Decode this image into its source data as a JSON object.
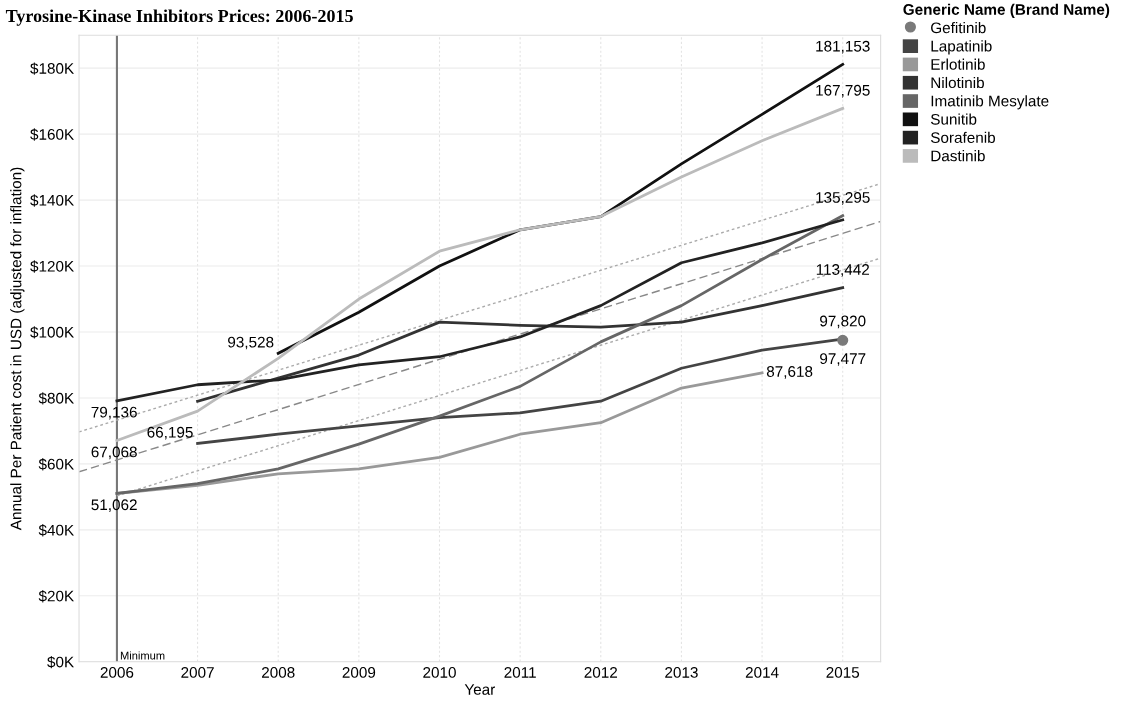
{
  "chart_data": {
    "type": "line",
    "title": "Tyrosine-Kinase Inhibitors Prices: 2006-2015",
    "xlabel": "Year",
    "ylabel": "Annual Per Patient cost in USD (adjusted for inflation)",
    "legend_title": "Generic Name (Brand Name)",
    "legend": "top right",
    "grid": true,
    "xlim": [
      2005.53,
      2015.47
    ],
    "xticks": [
      2006,
      2007,
      2008,
      2009,
      2010,
      2011,
      2012,
      2013,
      2014,
      2015
    ],
    "ylim": [
      0,
      190000
    ],
    "yticks": [
      {
        "value": 0,
        "label": "$0K"
      },
      {
        "value": 20000,
        "label": "$20K"
      },
      {
        "value": 40000,
        "label": "$40K"
      },
      {
        "value": 60000,
        "label": "$60K"
      },
      {
        "value": 80000,
        "label": "$80K"
      },
      {
        "value": 100000,
        "label": "$100K"
      },
      {
        "value": 120000,
        "label": "$120K"
      },
      {
        "value": 140000,
        "label": "$140K"
      },
      {
        "value": 160000,
        "label": "$160K"
      },
      {
        "value": 180000,
        "label": "$180K"
      }
    ],
    "series": [
      {
        "name": "Gefitinib",
        "color": "#7a7a7a",
        "x": [
          2015
        ],
        "values": [
          97477
        ],
        "marker": "circle"
      },
      {
        "name": "Lapatinib",
        "color": "#444444",
        "x": [
          2007,
          2008,
          2009,
          2010,
          2011,
          2012,
          2013,
          2014,
          2015
        ],
        "values": [
          66195,
          69000,
          71500,
          74000,
          75500,
          79000,
          89000,
          94500,
          97820
        ]
      },
      {
        "name": "Erlotinib",
        "color": "#999999",
        "x": [
          2006,
          2007,
          2008,
          2009,
          2010,
          2011,
          2012,
          2013,
          2014
        ],
        "values": [
          51062,
          53500,
          57000,
          58500,
          62000,
          69000,
          72500,
          83000,
          87618
        ]
      },
      {
        "name": "Nilotinib",
        "color": "#333333",
        "x": [
          2007,
          2008,
          2009,
          2010,
          2011,
          2012,
          2013,
          2014,
          2015
        ],
        "values": [
          79000,
          86000,
          93000,
          103000,
          102000,
          101500,
          103000,
          108000,
          113442
        ]
      },
      {
        "name": "Imatinib Mesylate",
        "color": "#666666",
        "x": [
          2006,
          2007,
          2008,
          2009,
          2010,
          2011,
          2012,
          2013,
          2014,
          2015
        ],
        "values": [
          51062,
          54000,
          58500,
          66000,
          74500,
          83500,
          97000,
          108000,
          122000,
          135295
        ]
      },
      {
        "name": "Sunitib",
        "color": "#111111",
        "x": [
          2008,
          2009,
          2010,
          2011,
          2012,
          2013,
          2014,
          2015
        ],
        "values": [
          93528,
          106000,
          120000,
          131000,
          135000,
          151000,
          166000,
          181153
        ]
      },
      {
        "name": "Sorafenib",
        "color": "#222222",
        "x": [
          2006,
          2007,
          2008,
          2009,
          2010,
          2011,
          2012,
          2013,
          2014,
          2015
        ],
        "values": [
          79136,
          84000,
          85500,
          90000,
          92500,
          98500,
          108000,
          121000,
          127000,
          134000
        ]
      },
      {
        "name": "Dastinib",
        "color": "#bbbbbb",
        "x": [
          2006,
          2007,
          2008,
          2009,
          2010,
          2011,
          2012,
          2013,
          2014,
          2015
        ],
        "values": [
          67068,
          76000,
          92000,
          110000,
          124500,
          131000,
          135000,
          147000,
          158000,
          167795
        ]
      },
      {
        "color": "#aaaaaa",
        "x": [
          2005.53,
          2015.47
        ],
        "values": [
          69700,
          145000
        ],
        "line_style": "dotted"
      },
      {
        "color": "#888888",
        "x": [
          2005.53,
          2015.47
        ],
        "values": [
          57600,
          133500
        ],
        "line_style": "dashed"
      },
      {
        "color": "#aaaaaa",
        "x": [
          2006,
          2015.47
        ],
        "values": [
          50300,
          122400
        ],
        "line_style": "dotted"
      }
    ],
    "ref_lines": [
      {
        "axis": "x",
        "value": 2006,
        "label": "Minimum",
        "color": "#777777"
      }
    ],
    "annotations": [
      {
        "text": "181,153",
        "x": 2015,
        "y": 181153
      },
      {
        "text": "167,795",
        "x": 2015,
        "y": 167795
      },
      {
        "text": "135,295",
        "x": 2015,
        "y": 135295
      },
      {
        "text": "113,442",
        "x": 2015,
        "y": 113442
      },
      {
        "text": "97,820",
        "x": 2015,
        "y": 97820
      },
      {
        "text": "97,477",
        "x": 2015,
        "y": 97477
      },
      {
        "text": "87,618",
        "x": 2014,
        "y": 87618
      },
      {
        "text": "93,528",
        "x": 2008,
        "y": 93528
      },
      {
        "text": "79,136",
        "x": 2006,
        "y": 79136
      },
      {
        "text": "67,068",
        "x": 2006,
        "y": 67068
      },
      {
        "text": "66,195",
        "x": 2007,
        "y": 66195
      },
      {
        "text": "51,062",
        "x": 2006,
        "y": 51062
      }
    ]
  }
}
